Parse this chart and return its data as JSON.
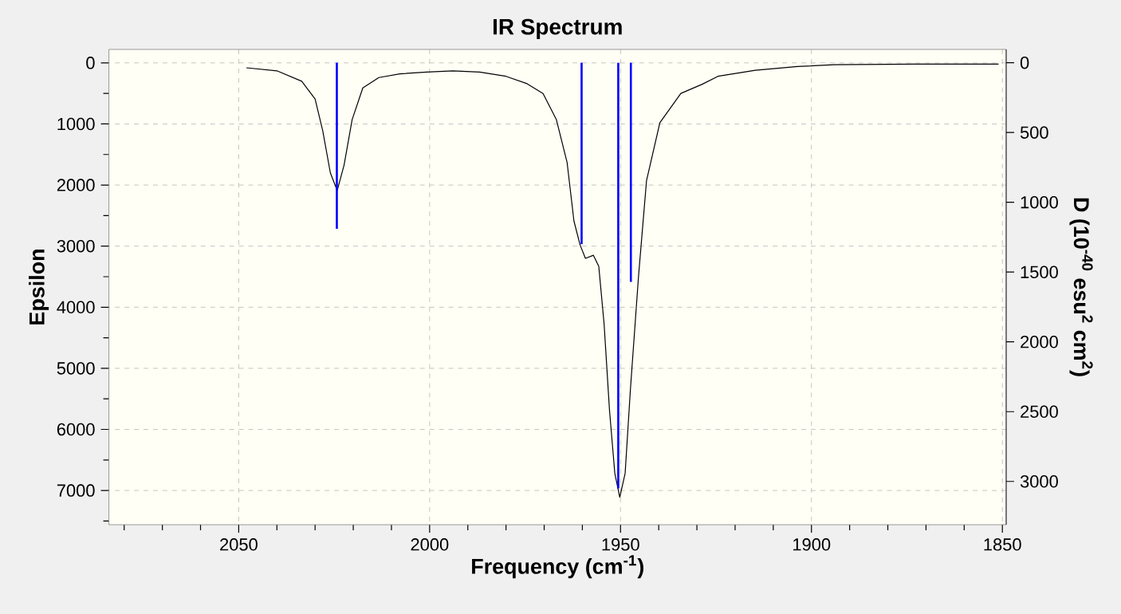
{
  "chart_data": {
    "type": "line",
    "title": "IR Spectrum",
    "xlabel": "Frequency (cm$^{-1}$)",
    "ylabel": "Epsilon",
    "y2label": "D (10$^{-40}$ esu$^{2}$ cm$^{2}$)",
    "xlim": [
      2084,
      1849
    ],
    "ylim": [
      7560,
      -220
    ],
    "y2lim": [
      3310,
      -95
    ],
    "xticks": [
      {
        "value": 2080,
        "label": null
      },
      {
        "value": 2070,
        "label": null
      },
      {
        "value": 2060,
        "label": null
      },
      2050,
      {
        "value": 2040,
        "label": null
      },
      {
        "value": 2030,
        "label": null
      },
      {
        "value": 2020,
        "label": null
      },
      {
        "value": 2010,
        "label": null
      },
      2000,
      {
        "value": 1990,
        "label": null
      },
      {
        "value": 1980,
        "label": null
      },
      {
        "value": 1970,
        "label": null
      },
      {
        "value": 1960,
        "label": null
      },
      1950,
      {
        "value": 1940,
        "label": null
      },
      {
        "value": 1930,
        "label": null
      },
      {
        "value": 1920,
        "label": null
      },
      {
        "value": 1910,
        "label": null
      },
      1900,
      {
        "value": 1890,
        "label": null
      },
      {
        "value": 1880,
        "label": null
      },
      {
        "value": 1870,
        "label": null
      },
      {
        "value": 1860,
        "label": null
      },
      1850
    ],
    "yticks": [
      0,
      {
        "value": 500,
        "label": null
      },
      1000,
      {
        "value": 1500,
        "label": null
      },
      2000,
      {
        "value": 2500,
        "label": null
      },
      3000,
      {
        "value": 3500,
        "label": null
      },
      4000,
      {
        "value": 4500,
        "label": null
      },
      5000,
      {
        "value": 5500,
        "label": null
      },
      6000,
      {
        "value": 6500,
        "label": null
      },
      7000,
      {
        "value": 7500,
        "label": null
      }
    ],
    "y2ticks": [
      0,
      500,
      1000,
      1500,
      2000,
      2500,
      3000
    ],
    "grid": true,
    "series": [
      {
        "color": "#000000",
        "x": [
          2048,
          2040,
          2033.5,
          2030,
          2028,
          2026,
          2024.2,
          2022.4,
          2020.3,
          2017.5,
          2013.3,
          2007.8,
          2000.8,
          1993.9,
          1986.9,
          1980,
          1974.5,
          1970.3,
          1966.8,
          1964,
          1962.2,
          1960.6,
          1959.2,
          1957.1,
          1955.7,
          1954.3,
          1952.9,
          1951.5,
          1950.2,
          1948.8,
          1947.4,
          1945.3,
          1943.2,
          1939.7,
          1934.2,
          1928.6,
          1924.5,
          1914.7,
          1903.6,
          1893.9,
          1873,
          1851
        ],
        "values": [
          80,
          130,
          300,
          590,
          1110,
          1800,
          2090,
          1670,
          930,
          410,
          240,
          180,
          150,
          130,
          150,
          220,
          340,
          500,
          930,
          1630,
          2590,
          2980,
          3200,
          3150,
          3330,
          4280,
          5680,
          6720,
          7110,
          6720,
          5330,
          3500,
          1930,
          980,
          500,
          350,
          220,
          120,
          60,
          30,
          20,
          20
        ]
      },
      {
        "type": "bar",
        "axis": "y2",
        "color": "#0000ff",
        "x": [
          2024.3,
          1960.2,
          1950.6,
          1947.3
        ],
        "values": [
          1190,
          1300,
          3050,
          1570
        ]
      }
    ]
  }
}
